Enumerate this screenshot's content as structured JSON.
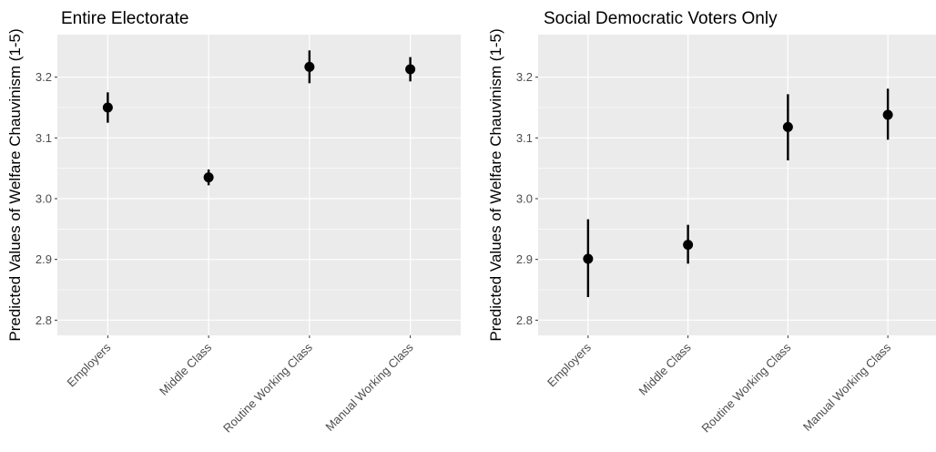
{
  "chart_data": [
    {
      "type": "scatter",
      "style": "point-range",
      "title": "Entire Electorate",
      "xlabel": "",
      "ylabel": "Predicted Values of Welfare Chauvinism (1-5)",
      "categories": [
        "Employers",
        "Middle Class",
        "Routine Working Class",
        "Manual Working Class"
      ],
      "estimates": [
        3.15,
        3.035,
        3.217,
        3.213
      ],
      "lower": [
        3.125,
        3.022,
        3.19,
        3.193
      ],
      "upper": [
        3.175,
        3.048,
        3.244,
        3.233
      ],
      "ylim": [
        2.775,
        3.27
      ],
      "yticks": [
        "2.8",
        "2.9",
        "3.0",
        "3.1",
        "3.2"
      ],
      "grid": true
    },
    {
      "type": "scatter",
      "style": "point-range",
      "title": "Social Democratic Voters Only",
      "xlabel": "",
      "ylabel": "Predicted Values of Welfare Chauvinism (1-5)",
      "categories": [
        "Employers",
        "Middle Class",
        "Routine Working Class",
        "Manual Working Class"
      ],
      "estimates": [
        2.901,
        2.924,
        3.118,
        3.138
      ],
      "lower": [
        2.838,
        2.893,
        3.063,
        3.097
      ],
      "upper": [
        2.966,
        2.957,
        3.172,
        3.181
      ],
      "ylim": [
        2.775,
        3.27
      ],
      "yticks": [
        "2.8",
        "2.9",
        "3.0",
        "3.1",
        "3.2"
      ],
      "grid": true
    }
  ],
  "colors": {
    "panel_background": "#ebebeb",
    "grid_line": "#ffffff",
    "point": "#000000",
    "tick_label": "#4d4d4d"
  }
}
